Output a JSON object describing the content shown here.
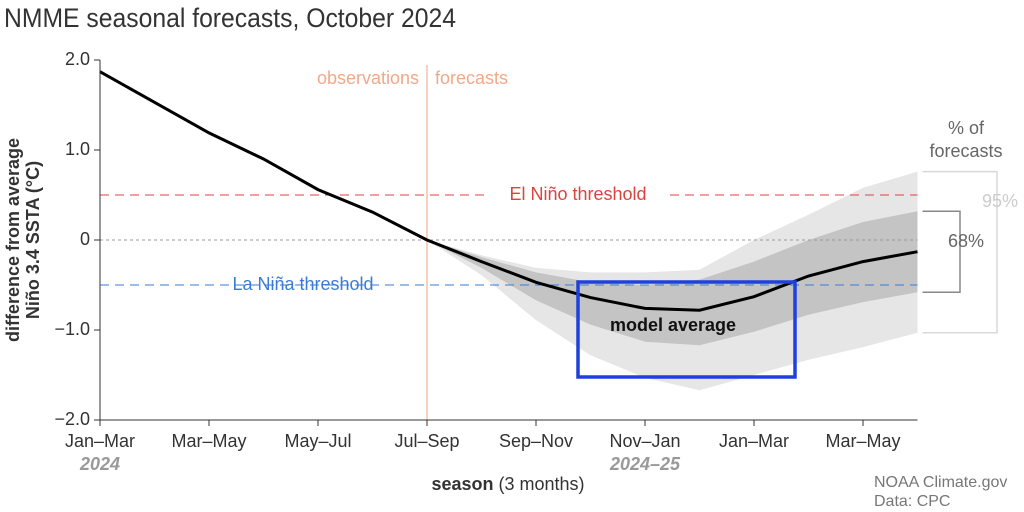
{
  "chart_data": {
    "type": "line",
    "title": "NMME seasonal forecasts, October 2024",
    "ylabel": [
      "difference from average",
      "Niño 3.4 SSTA (°C)"
    ],
    "xlabel": {
      "bold": "season",
      "rest": "(3 months)"
    },
    "categories": [
      "Jan–Mar",
      null,
      "Mar–May",
      null,
      "May–Jul",
      null,
      "Jul–Sep",
      null,
      "Sep–Nov",
      null,
      "Nov–Jan",
      null,
      "Jan–Mar",
      null,
      "Mar–May",
      null
    ],
    "year_labels": [
      "2024",
      null,
      null,
      null,
      null,
      null,
      null,
      null,
      null,
      null,
      "2024–25",
      null,
      null,
      null,
      null,
      null
    ],
    "ylim": [
      -2,
      2
    ],
    "yticks": [
      {
        "value": 2,
        "label": "2.0"
      },
      {
        "value": 1,
        "label": "1.0"
      },
      0,
      {
        "value": -1,
        "label": "−1.0"
      },
      {
        "value": -2,
        "label": "−2.0"
      }
    ],
    "series": [
      {
        "name": "model average",
        "color": "#000000",
        "values": [
          1.87,
          1.53,
          1.19,
          0.9,
          0.56,
          0.31,
          0.0,
          -0.24,
          -0.47,
          -0.64,
          -0.76,
          -0.78,
          -0.63,
          -0.4,
          -0.24,
          -0.13
        ]
      }
    ],
    "bands": [
      {
        "name": "95%",
        "color": "#e6e6e6",
        "upper": [
          null,
          null,
          null,
          null,
          null,
          null,
          0.0,
          -0.17,
          -0.31,
          -0.36,
          -0.36,
          -0.33,
          0.0,
          0.28,
          0.58,
          0.76
        ],
        "lower": [
          null,
          null,
          null,
          null,
          null,
          null,
          0.0,
          -0.39,
          -0.89,
          -1.28,
          -1.53,
          -1.67,
          -1.5,
          -1.33,
          -1.19,
          -1.03
        ]
      },
      {
        "name": "68%",
        "color": "#c4c4c4",
        "upper": [
          null,
          null,
          null,
          null,
          null,
          null,
          0.0,
          -0.19,
          -0.36,
          -0.47,
          -0.5,
          -0.44,
          -0.24,
          0.0,
          0.2,
          0.32
        ],
        "lower": [
          null,
          null,
          null,
          null,
          null,
          null,
          0.0,
          -0.31,
          -0.67,
          -0.94,
          -1.13,
          -1.17,
          -1.02,
          -0.83,
          -0.69,
          -0.58
        ]
      }
    ],
    "band_label": [
      "% of",
      "forecasts"
    ],
    "thresholds": [
      {
        "label": "El Niño threshold",
        "value": 0.5,
        "color": "#d9443f"
      },
      {
        "label": "La Niña threshold",
        "value": -0.5,
        "color": "#3a7bd5"
      }
    ],
    "period_labels": [
      "observations",
      "forecasts"
    ],
    "credits": [
      "NOAA Climate.gov",
      "Data: CPC"
    ]
  }
}
